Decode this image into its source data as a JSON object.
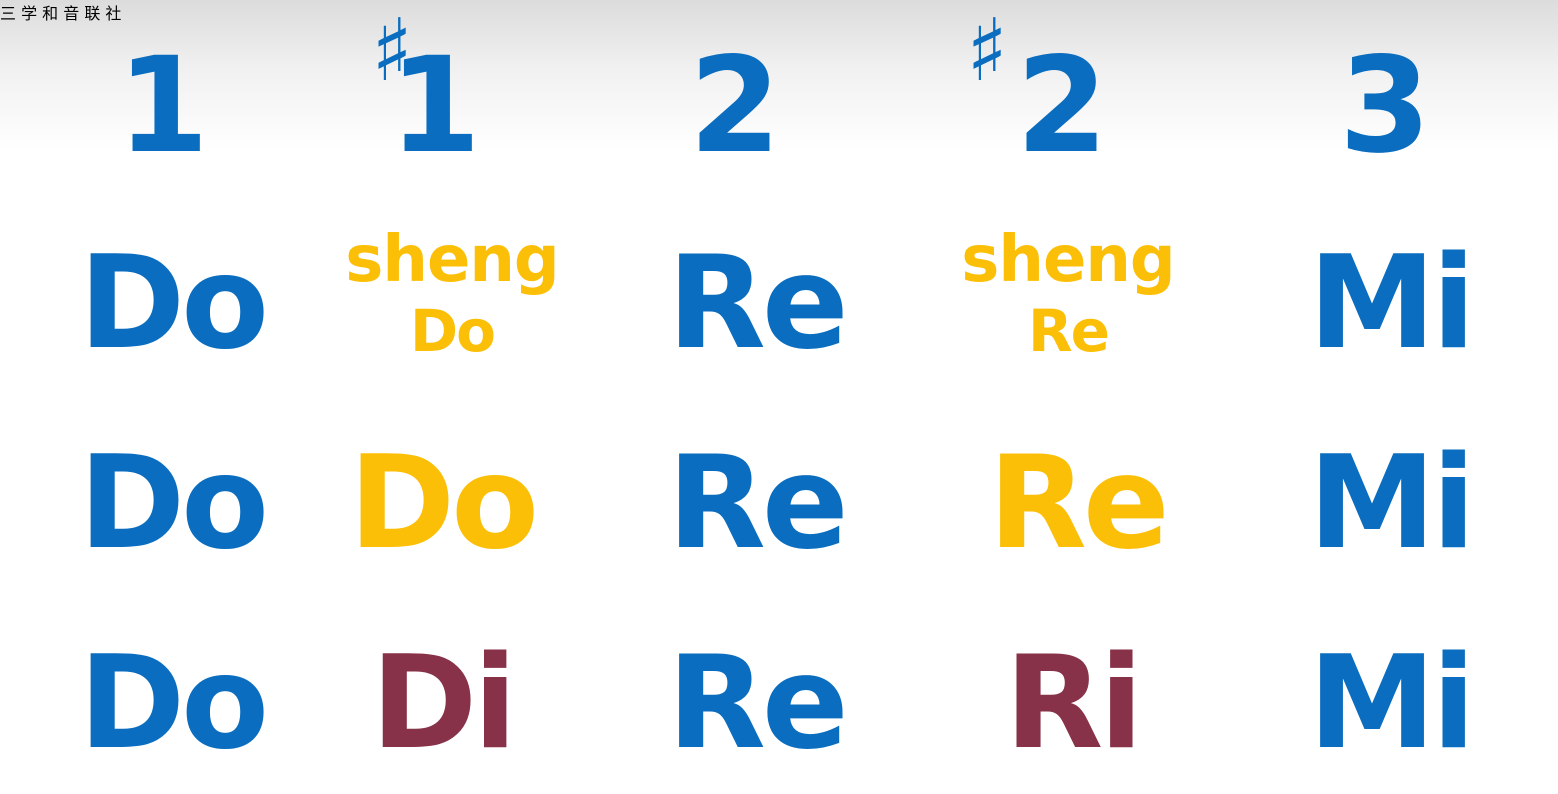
{
  "colors": {
    "blue": "#0a6dbf",
    "yellow": "#fcbf07",
    "maroon": "#873248"
  },
  "watermark": "三 学 和 音 联 社",
  "header": {
    "numbers": [
      "1",
      "1",
      "2",
      "2",
      "3"
    ],
    "sharp_symbol": "♯"
  },
  "rows": [
    {
      "cells": [
        {
          "text": "Do"
        },
        {
          "top": "sheng",
          "bottom": "Do"
        },
        {
          "text": "Re"
        },
        {
          "top": "sheng",
          "bottom": "Re"
        },
        {
          "text": "Mi"
        }
      ]
    },
    {
      "cells": [
        {
          "text": "Do"
        },
        {
          "text": "Do"
        },
        {
          "text": "Re"
        },
        {
          "text": "Re"
        },
        {
          "text": "Mi"
        }
      ]
    },
    {
      "cells": [
        {
          "text": "Do"
        },
        {
          "text": "Di"
        },
        {
          "text": "Re"
        },
        {
          "text": "Ri"
        },
        {
          "text": "Mi"
        }
      ]
    }
  ]
}
